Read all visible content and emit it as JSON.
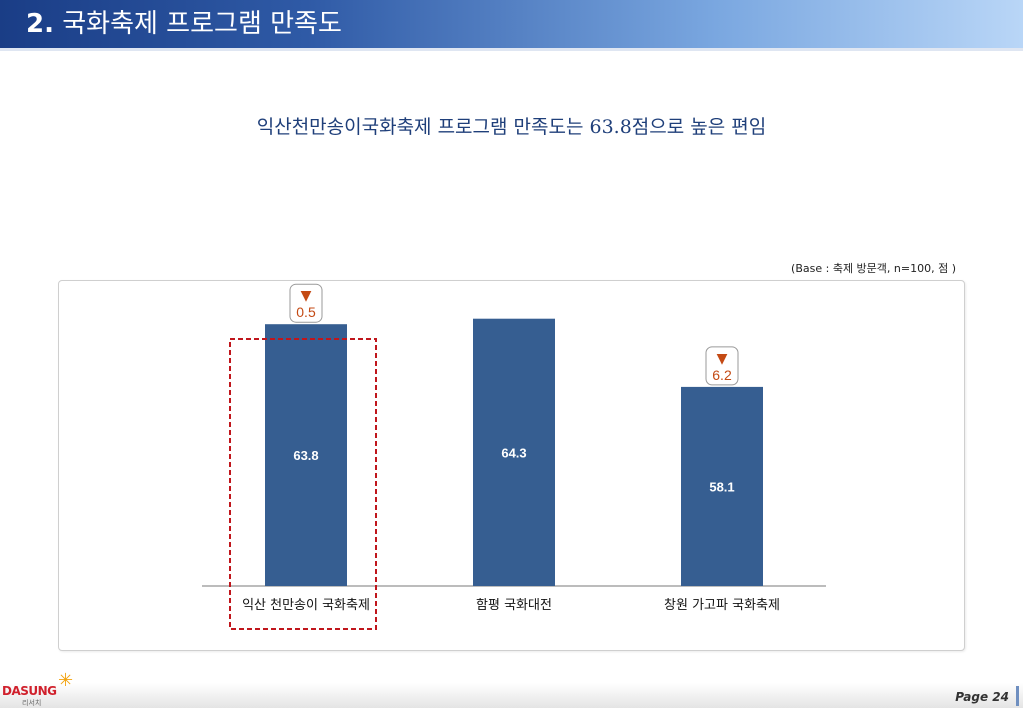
{
  "header": {
    "number": "2.",
    "title": "국화축제 프로그램 만족도"
  },
  "subtitle": "익산천만송이국화축제 프로그램 만족도는 63.8점으로 높은 편임",
  "base_note": "(Base : 축제 방문객, n=100, 점 )",
  "chart_data": {
    "type": "bar",
    "categories": [
      "익산 천만송이 국화축제",
      "함평 국화대전",
      "창원 가고파 국화축제"
    ],
    "values": [
      63.8,
      64.3,
      58.1
    ],
    "ylim": [
      40,
      70
    ],
    "bar_color": "#365e91",
    "highlighted_category": 0,
    "highlight_color": "#c0161c",
    "gap_badges": [
      {
        "category": 0,
        "marker": "▼",
        "value": "0.5"
      },
      {
        "category": 2,
        "marker": "▼",
        "value": "6.2"
      }
    ],
    "badge_color": "#c44a14",
    "grid": false
  },
  "footer": {
    "logo": "DASUNG",
    "logo_sub": "리서치",
    "page_label": "Page 24"
  }
}
